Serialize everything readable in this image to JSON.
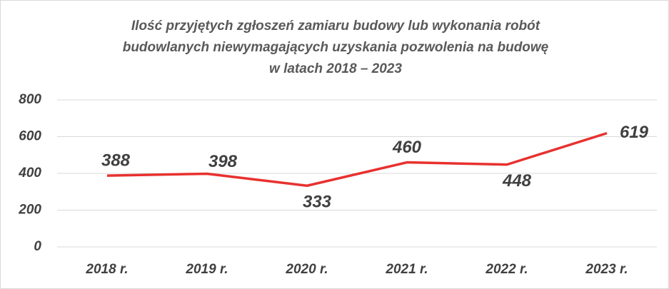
{
  "chart_data": {
    "type": "line",
    "title": [
      "Ilość przyjętych zgłoszeń zamiaru budowy lub wykonania robót",
      "budowlanych niewymagających uzyskania pozwolenia na budowę",
      "w latach 2018 – 2023"
    ],
    "categories": [
      "2018 r.",
      "2019 r.",
      "2020 r.",
      "2021 r.",
      "2022 r.",
      "2023 r."
    ],
    "series": [
      {
        "name": null,
        "color": "#e8312f",
        "values": [
          388,
          398,
          333,
          460,
          448,
          619
        ]
      }
    ],
    "ylim": [
      0,
      800
    ],
    "yticks": [
      0,
      200,
      400,
      600,
      800
    ],
    "grid": true
  }
}
